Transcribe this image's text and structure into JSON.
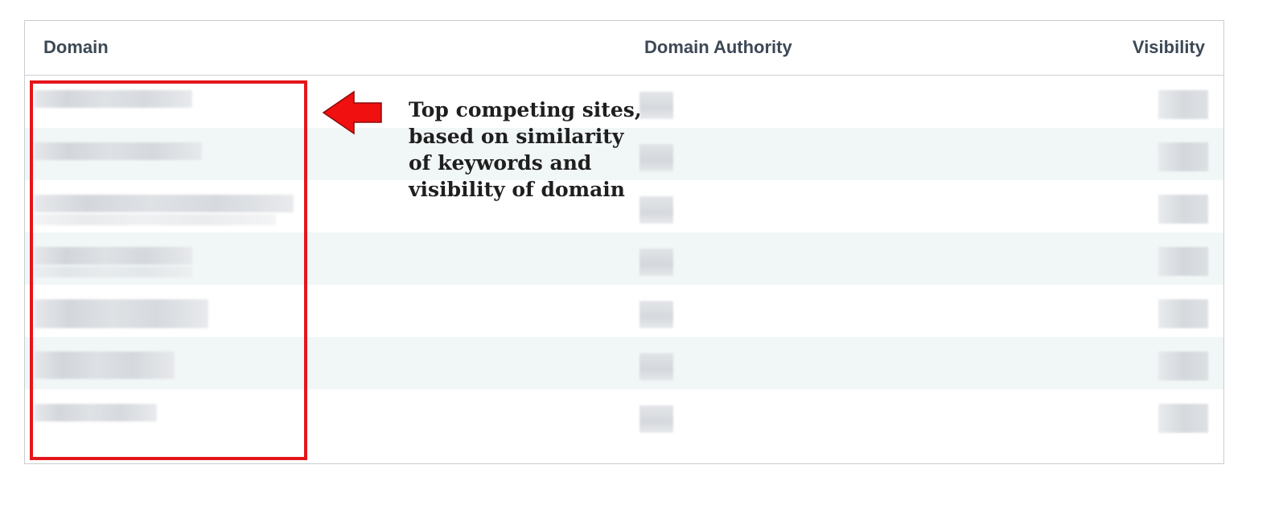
{
  "table": {
    "headers": {
      "domain": "Domain",
      "domain_authority": "Domain Authority",
      "visibility": "Visibility"
    },
    "rows": [
      {
        "domain": "",
        "domain_authority": "",
        "visibility": ""
      },
      {
        "domain": "",
        "domain_authority": "",
        "visibility": ""
      },
      {
        "domain": "",
        "domain_authority": "",
        "visibility": ""
      },
      {
        "domain": "",
        "domain_authority": "",
        "visibility": ""
      },
      {
        "domain": "",
        "domain_authority": "",
        "visibility": ""
      },
      {
        "domain": "",
        "domain_authority": "",
        "visibility": ""
      },
      {
        "domain": "",
        "domain_authority": "",
        "visibility": ""
      }
    ]
  },
  "annotation": {
    "lines": [
      "Top competing sites,",
      "based on similarity",
      "of keywords and",
      "visibility of domain"
    ]
  },
  "colors": {
    "highlight": "#e3161c",
    "arrow_fill": "#f01010",
    "header_text": "#3d4955",
    "row_alt": "#f1f6f6"
  },
  "icons": {
    "pointer": "left-arrow-icon"
  }
}
